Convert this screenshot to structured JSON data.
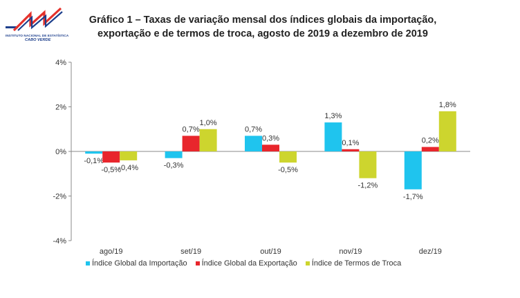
{
  "logo": {
    "org_line1": "INSTITUTO NACIONAL DE ESTATÍSTICA",
    "org_line2": "CABO VERDE",
    "colors": {
      "red": "#e5312b",
      "blue": "#1d3f8c"
    }
  },
  "title_line1": "Gráfico 1 – Taxas de variação mensal dos índices globais da importação,",
  "title_line2": "exportação e de termos de troca, agosto de 2019 a dezembro de 2019",
  "chart_data": {
    "type": "bar",
    "title": "Gráfico 1 – Taxas de variação mensal dos índices globais da importação, exportação e de termos de troca, agosto de 2019 a dezembro de 2019",
    "categories": [
      "ago/19",
      "set/19",
      "out/19",
      "nov/19",
      "dez/19"
    ],
    "series": [
      {
        "name": "Índice Global da Importação",
        "color": "#1fc4ee",
        "values": [
          -0.1,
          -0.3,
          0.7,
          1.3,
          -1.7
        ],
        "labels": [
          "-0,1%",
          "-0,3%",
          "0,7%",
          "1,3%",
          "-1,7%"
        ]
      },
      {
        "name": "Índice Global da Exportação",
        "color": "#e8262c",
        "values": [
          -0.5,
          0.7,
          0.3,
          0.1,
          0.2
        ],
        "labels": [
          "-0,5%",
          "0,7%",
          "0,3%",
          "0,1%",
          "0,2%"
        ]
      },
      {
        "name": "Índice de Termos de Troca",
        "color": "#cdd52e",
        "values": [
          -0.4,
          1.0,
          -0.5,
          -1.2,
          1.8
        ],
        "labels": [
          "-0,4%",
          "1,0%",
          "-0,5%",
          "-1,2%",
          "1,8%"
        ]
      }
    ],
    "yticks": [
      4,
      2,
      0,
      -2,
      -4
    ],
    "ytick_labels": [
      "4%",
      "2%",
      "0%",
      "-2%",
      "-4%"
    ],
    "ylim": [
      -4,
      4
    ],
    "legend_position": "bottom",
    "grid": false
  }
}
